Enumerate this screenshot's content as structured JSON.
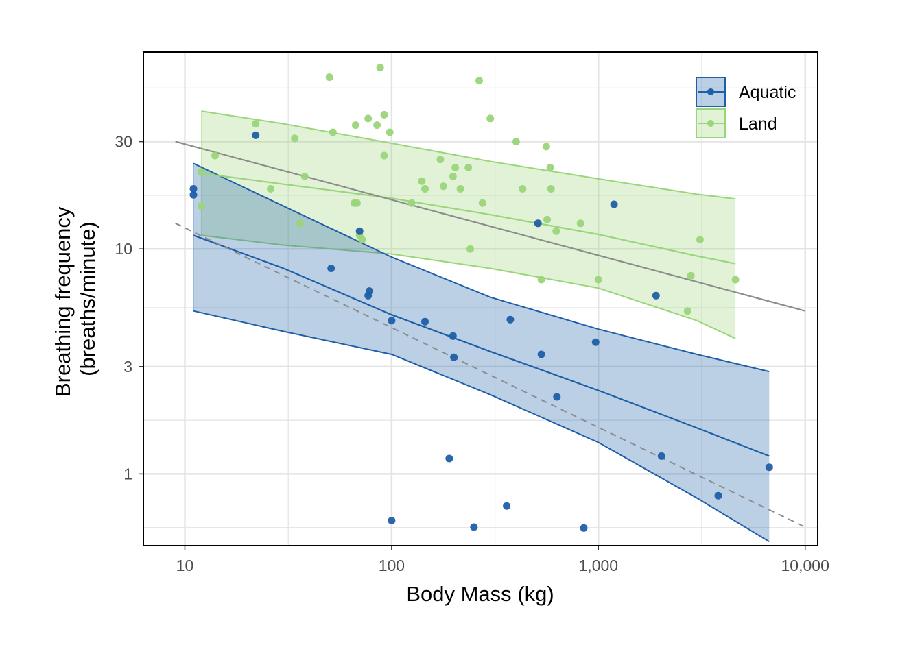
{
  "chart_data": {
    "type": "scatter",
    "xlabel": "Body Mass (kg)",
    "ylabel_lines": [
      "Breathing frequency",
      "(breaths/minute)"
    ],
    "x_scale": "log10",
    "y_scale": "log10",
    "xlim": [
      6.3,
      11500
    ],
    "ylim": [
      0.48,
      75
    ],
    "x_ticks": [
      {
        "value": 10,
        "label": "10"
      },
      {
        "value": 100,
        "label": "100"
      },
      {
        "value": 1000,
        "label": "1,000"
      },
      {
        "value": 10000,
        "label": "10,000"
      }
    ],
    "y_ticks": [
      {
        "value": 1,
        "label": "1"
      },
      {
        "value": 3,
        "label": "3"
      },
      {
        "value": 10,
        "label": "10"
      },
      {
        "value": 30,
        "label": "30"
      }
    ],
    "grid": true,
    "legend_position": "top-right",
    "colors": {
      "aquatic": "#1f5fa8",
      "land": "#9ad57a",
      "overall_line": "#8c8c8c",
      "grid": "#e3e3e3",
      "axis": "#000000"
    },
    "series": [
      {
        "name": "Aquatic",
        "key": "aquatic",
        "points": [
          [
            11,
            18.5
          ],
          [
            11,
            17.4
          ],
          [
            22,
            32
          ],
          [
            51,
            8.2
          ],
          [
            70,
            12
          ],
          [
            77,
            6.2
          ],
          [
            78,
            6.5
          ],
          [
            100,
            4.8
          ],
          [
            100,
            0.62
          ],
          [
            145,
            4.75
          ],
          [
            190,
            1.17
          ],
          [
            198,
            4.1
          ],
          [
            200,
            3.3
          ],
          [
            250,
            0.58
          ],
          [
            360,
            0.72
          ],
          [
            375,
            4.85
          ],
          [
            510,
            13
          ],
          [
            530,
            3.4
          ],
          [
            630,
            2.2
          ],
          [
            850,
            0.575
          ],
          [
            970,
            3.85
          ],
          [
            1190,
            15.8
          ],
          [
            1900,
            6.2
          ],
          [
            2020,
            1.2
          ],
          [
            3800,
            0.8
          ],
          [
            6700,
            1.07
          ]
        ],
        "fit": [
          [
            11,
            11.5
          ],
          [
            30,
            8.2
          ],
          [
            100,
            5.1
          ],
          [
            300,
            3.5
          ],
          [
            1000,
            2.35
          ],
          [
            3000,
            1.6
          ],
          [
            6700,
            1.2
          ]
        ],
        "band_upper": [
          [
            11,
            24
          ],
          [
            30,
            15.5
          ],
          [
            100,
            9.2
          ],
          [
            300,
            6.1
          ],
          [
            1000,
            4.4
          ],
          [
            3000,
            3.4
          ],
          [
            6700,
            2.85
          ]
        ],
        "band_lower": [
          [
            11,
            5.3
          ],
          [
            30,
            4.3
          ],
          [
            100,
            3.4
          ],
          [
            300,
            2.25
          ],
          [
            1000,
            1.38
          ],
          [
            3000,
            0.78
          ],
          [
            6700,
            0.5
          ]
        ]
      },
      {
        "name": "Land",
        "key": "land",
        "points": [
          [
            12,
            22
          ],
          [
            12,
            15.5
          ],
          [
            14,
            26
          ],
          [
            22,
            36
          ],
          [
            26,
            18.5
          ],
          [
            34,
            31
          ],
          [
            36,
            13
          ],
          [
            38,
            21
          ],
          [
            50,
            58
          ],
          [
            52,
            33
          ],
          [
            66,
            16
          ],
          [
            67,
            35.5
          ],
          [
            68,
            16
          ],
          [
            70,
            11.5
          ],
          [
            72,
            11
          ],
          [
            77,
            38
          ],
          [
            85,
            35.5
          ],
          [
            88,
            64
          ],
          [
            92,
            39.5
          ],
          [
            92,
            26
          ],
          [
            98,
            33
          ],
          [
            125,
            16
          ],
          [
            140,
            20
          ],
          [
            145,
            18.5
          ],
          [
            172,
            25
          ],
          [
            178,
            19
          ],
          [
            198,
            21
          ],
          [
            203,
            23
          ],
          [
            215,
            18.5
          ],
          [
            235,
            23
          ],
          [
            240,
            10
          ],
          [
            265,
            56
          ],
          [
            275,
            16
          ],
          [
            300,
            38
          ],
          [
            400,
            30
          ],
          [
            430,
            18.5
          ],
          [
            530,
            7.3
          ],
          [
            560,
            28.5
          ],
          [
            565,
            13.5
          ],
          [
            585,
            23
          ],
          [
            590,
            18.5
          ],
          [
            625,
            12
          ],
          [
            820,
            13
          ],
          [
            1000,
            7.3
          ],
          [
            2700,
            5.3
          ],
          [
            2800,
            7.6
          ],
          [
            3100,
            11
          ],
          [
            4600,
            7.3
          ]
        ],
        "fit": [
          [
            12,
            21.7
          ],
          [
            30,
            19.4
          ],
          [
            100,
            16.8
          ],
          [
            300,
            14.2
          ],
          [
            1000,
            11.6
          ],
          [
            3000,
            9.3
          ],
          [
            4600,
            8.6
          ]
        ],
        "band_upper": [
          [
            12,
            41
          ],
          [
            30,
            36
          ],
          [
            100,
            29.5
          ],
          [
            300,
            24.5
          ],
          [
            1000,
            20.5
          ],
          [
            3000,
            17.5
          ],
          [
            4600,
            16.7
          ]
        ],
        "band_lower": [
          [
            12,
            11.5
          ],
          [
            30,
            10.4
          ],
          [
            100,
            9.5
          ],
          [
            300,
            8.2
          ],
          [
            1000,
            6.7
          ],
          [
            3000,
            4.8
          ],
          [
            4600,
            4
          ]
        ]
      }
    ],
    "overall_fit": {
      "style": "solid",
      "points": [
        [
          9,
          30
        ],
        [
          10000,
          5.3
        ]
      ]
    },
    "reference_line": {
      "style": "dashed",
      "points": [
        [
          9,
          13
        ],
        [
          10000,
          0.58
        ]
      ]
    }
  }
}
